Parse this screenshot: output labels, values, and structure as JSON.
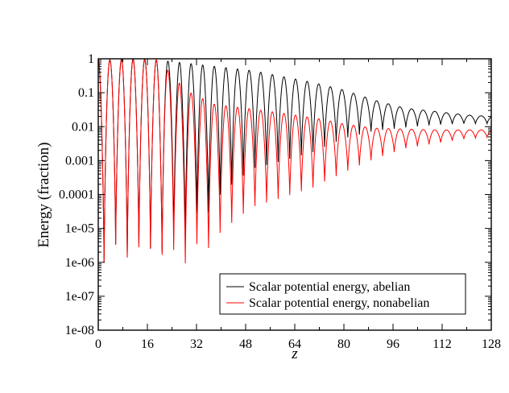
{
  "chart_data": {
    "type": "line",
    "title": "",
    "xlabel": "z",
    "ylabel": "Energy (fraction)",
    "xscale": "linear",
    "yscale": "log",
    "xlim": [
      0,
      128
    ],
    "ylim": [
      1e-08,
      1
    ],
    "x_ticks": [
      0,
      16,
      32,
      48,
      64,
      80,
      96,
      112,
      128
    ],
    "x_tick_labels": [
      "0",
      "16",
      "32",
      "48",
      "64",
      "80",
      "96",
      "112",
      "128"
    ],
    "y_ticks": [
      1e-08,
      1e-07,
      1e-06,
      1e-05,
      0.0001,
      0.001,
      0.01,
      0.1,
      1
    ],
    "y_tick_labels": [
      "1e-08",
      "1e-07",
      "1e-06",
      "1e-05",
      "0.0001",
      "0.001",
      "0.01",
      "0.1",
      "1"
    ],
    "grid": false,
    "legend_position": "bottom-right",
    "oscillation_period": 3.78,
    "series": [
      {
        "name": "Scalar potential energy, abelian",
        "color": "#000000",
        "envelope_max": [
          [
            0,
            0.9
          ],
          [
            10,
            1.0
          ],
          [
            18,
            0.95
          ],
          [
            30,
            0.72
          ],
          [
            50,
            0.45
          ],
          [
            70,
            0.2
          ],
          [
            80,
            0.12
          ],
          [
            90,
            0.06
          ],
          [
            100,
            0.035
          ],
          [
            110,
            0.028
          ],
          [
            120,
            0.022
          ],
          [
            128,
            0.02
          ]
        ],
        "envelope_min": [
          [
            0,
            1e-07
          ],
          [
            4,
            5e-06
          ],
          [
            8,
            7e-07
          ],
          [
            12,
            1.5e-06
          ],
          [
            16,
            3e-06
          ],
          [
            19.5,
            3.5e-07
          ],
          [
            23,
            1e-05
          ],
          [
            27,
            1.2e-06
          ],
          [
            31,
            2.5e-05
          ],
          [
            34.5,
            1.3e-05
          ],
          [
            40,
            8e-05
          ],
          [
            50,
            0.00045
          ],
          [
            60,
            0.0008
          ],
          [
            70,
            0.0015
          ],
          [
            80,
            0.004
          ],
          [
            90,
            0.007
          ],
          [
            100,
            0.009
          ],
          [
            110,
            0.011
          ],
          [
            120,
            0.012
          ],
          [
            128,
            0.012
          ]
        ]
      },
      {
        "name": "Scalar potential energy, nonabelian",
        "color": "#ff0000",
        "envelope_max": [
          [
            0,
            0.9
          ],
          [
            20,
            0.93
          ],
          [
            25,
            0.25
          ],
          [
            30,
            0.1
          ],
          [
            38,
            0.045
          ],
          [
            48,
            0.035
          ],
          [
            56,
            0.028
          ],
          [
            64,
            0.022
          ],
          [
            72,
            0.017
          ],
          [
            80,
            0.012
          ],
          [
            90,
            0.009
          ],
          [
            100,
            0.0085
          ],
          [
            110,
            0.008
          ],
          [
            120,
            0.008
          ],
          [
            128,
            0.008
          ]
        ]
      }
    ]
  }
}
